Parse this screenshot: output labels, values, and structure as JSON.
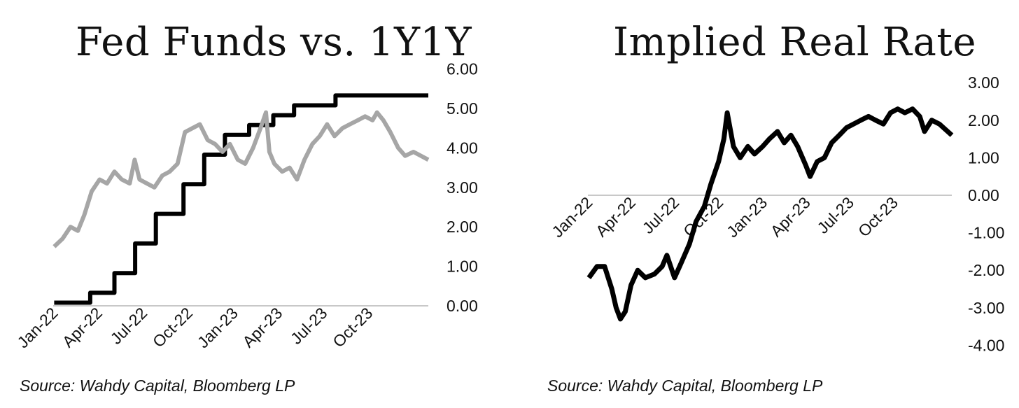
{
  "chart_data": [
    {
      "type": "line",
      "title": "Fed Funds vs. 1Y1Y",
      "source": "Source: Wahdy Capital, Bloomberg LP",
      "x_tick_labels": [
        "Jan-22",
        "Apr-22",
        "Jul-22",
        "Oct-22",
        "Jan-23",
        "Apr-23",
        "Jul-23",
        "Oct-23"
      ],
      "y_tick_labels": [
        "0.00",
        "1.00",
        "2.00",
        "3.00",
        "4.00",
        "5.00",
        "6.00"
      ],
      "ylim": [
        0,
        6
      ],
      "xlim": [
        "2022-01-01",
        "2024-01-31"
      ],
      "y_axis_side": "right",
      "grid": false,
      "legend": "none",
      "series": [
        {
          "color": "#000000",
          "line": "step",
          "points": [
            [
              "2022-01-03",
              0.08
            ],
            [
              "2022-03-17",
              0.33
            ],
            [
              "2022-05-05",
              0.83
            ],
            [
              "2022-06-16",
              1.58
            ],
            [
              "2022-07-28",
              2.33
            ],
            [
              "2022-09-22",
              3.08
            ],
            [
              "2022-11-03",
              3.83
            ],
            [
              "2022-12-15",
              4.33
            ],
            [
              "2023-02-02",
              4.58
            ],
            [
              "2023-03-23",
              4.83
            ],
            [
              "2023-05-04",
              5.08
            ],
            [
              "2023-07-27",
              5.33
            ],
            [
              "2024-01-31",
              5.33
            ]
          ]
        },
        {
          "color": "#a6a6a6",
          "line": "line",
          "points": [
            [
              "2022-01-03",
              1.5
            ],
            [
              "2022-01-20",
              1.7
            ],
            [
              "2022-02-05",
              2.0
            ],
            [
              "2022-02-20",
              1.9
            ],
            [
              "2022-03-05",
              2.3
            ],
            [
              "2022-03-20",
              2.9
            ],
            [
              "2022-04-05",
              3.2
            ],
            [
              "2022-04-20",
              3.1
            ],
            [
              "2022-05-05",
              3.4
            ],
            [
              "2022-05-20",
              3.2
            ],
            [
              "2022-06-05",
              3.1
            ],
            [
              "2022-06-15",
              3.7
            ],
            [
              "2022-06-25",
              3.2
            ],
            [
              "2022-07-10",
              3.1
            ],
            [
              "2022-07-25",
              3.0
            ],
            [
              "2022-08-10",
              3.3
            ],
            [
              "2022-08-25",
              3.4
            ],
            [
              "2022-09-10",
              3.6
            ],
            [
              "2022-09-25",
              4.4
            ],
            [
              "2022-10-10",
              4.5
            ],
            [
              "2022-10-25",
              4.6
            ],
            [
              "2022-11-10",
              4.2
            ],
            [
              "2022-11-25",
              4.1
            ],
            [
              "2022-12-10",
              3.9
            ],
            [
              "2022-12-25",
              4.1
            ],
            [
              "2023-01-10",
              3.7
            ],
            [
              "2023-01-25",
              3.6
            ],
            [
              "2023-02-10",
              4.0
            ],
            [
              "2023-02-25",
              4.5
            ],
            [
              "2023-03-08",
              4.9
            ],
            [
              "2023-03-15",
              3.9
            ],
            [
              "2023-03-25",
              3.6
            ],
            [
              "2023-04-10",
              3.4
            ],
            [
              "2023-04-25",
              3.5
            ],
            [
              "2023-05-10",
              3.2
            ],
            [
              "2023-05-25",
              3.7
            ],
            [
              "2023-06-10",
              4.1
            ],
            [
              "2023-06-25",
              4.3
            ],
            [
              "2023-07-10",
              4.6
            ],
            [
              "2023-07-25",
              4.3
            ],
            [
              "2023-08-10",
              4.5
            ],
            [
              "2023-08-25",
              4.6
            ],
            [
              "2023-09-10",
              4.7
            ],
            [
              "2023-09-25",
              4.8
            ],
            [
              "2023-10-10",
              4.7
            ],
            [
              "2023-10-19",
              4.9
            ],
            [
              "2023-11-01",
              4.7
            ],
            [
              "2023-11-15",
              4.4
            ],
            [
              "2023-12-01",
              4.0
            ],
            [
              "2023-12-15",
              3.8
            ],
            [
              "2024-01-01",
              3.9
            ],
            [
              "2024-01-31",
              3.7
            ]
          ]
        }
      ]
    },
    {
      "type": "line",
      "title": "Implied Real Rate",
      "source": "Source: Wahdy Capital, Bloomberg LP",
      "x_tick_labels": [
        "Jan-22",
        "Apr-22",
        "Jul-22",
        "Oct-22",
        "Jan-23",
        "Apr-23",
        "Jul-23",
        "Oct-23"
      ],
      "y_tick_labels": [
        "3.00",
        "2.00",
        "1.00",
        "0.00",
        "-1.00",
        "-2.00",
        "-3.00",
        "-4.00"
      ],
      "ylim": [
        -4,
        3
      ],
      "xlim": [
        "2022-01-01",
        "2024-01-31"
      ],
      "y_axis_side": "right",
      "grid": false,
      "legend": "none",
      "series": [
        {
          "color": "#000000",
          "line": "line",
          "points": [
            [
              "2022-01-03",
              -2.2
            ],
            [
              "2022-01-20",
              -1.9
            ],
            [
              "2022-02-05",
              -1.9
            ],
            [
              "2022-02-20",
              -2.5
            ],
            [
              "2022-03-01",
              -3.0
            ],
            [
              "2022-03-10",
              -3.3
            ],
            [
              "2022-03-20",
              -3.1
            ],
            [
              "2022-04-01",
              -2.4
            ],
            [
              "2022-04-15",
              -2.0
            ],
            [
              "2022-05-01",
              -2.2
            ],
            [
              "2022-05-20",
              -2.1
            ],
            [
              "2022-06-05",
              -1.9
            ],
            [
              "2022-06-15",
              -1.6
            ],
            [
              "2022-07-01",
              -2.2
            ],
            [
              "2022-07-15",
              -1.8
            ],
            [
              "2022-08-01",
              -1.3
            ],
            [
              "2022-08-15",
              -0.7
            ],
            [
              "2022-09-01",
              -0.3
            ],
            [
              "2022-09-15",
              0.3
            ],
            [
              "2022-10-01",
              0.9
            ],
            [
              "2022-10-12",
              1.5
            ],
            [
              "2022-10-19",
              2.2
            ],
            [
              "2022-11-01",
              1.3
            ],
            [
              "2022-11-15",
              1.0
            ],
            [
              "2022-12-01",
              1.3
            ],
            [
              "2022-12-15",
              1.1
            ],
            [
              "2023-01-01",
              1.3
            ],
            [
              "2023-01-15",
              1.5
            ],
            [
              "2023-02-01",
              1.7
            ],
            [
              "2023-02-15",
              1.4
            ],
            [
              "2023-03-01",
              1.6
            ],
            [
              "2023-03-15",
              1.3
            ],
            [
              "2023-04-01",
              0.8
            ],
            [
              "2023-04-10",
              0.5
            ],
            [
              "2023-04-25",
              0.9
            ],
            [
              "2023-05-10",
              1.0
            ],
            [
              "2023-05-25",
              1.4
            ],
            [
              "2023-06-10",
              1.6
            ],
            [
              "2023-06-25",
              1.8
            ],
            [
              "2023-07-10",
              1.9
            ],
            [
              "2023-07-25",
              2.0
            ],
            [
              "2023-08-10",
              2.1
            ],
            [
              "2023-08-25",
              2.0
            ],
            [
              "2023-09-10",
              1.9
            ],
            [
              "2023-09-25",
              2.2
            ],
            [
              "2023-10-10",
              2.3
            ],
            [
              "2023-10-25",
              2.2
            ],
            [
              "2023-11-10",
              2.3
            ],
            [
              "2023-11-25",
              2.1
            ],
            [
              "2023-12-05",
              1.7
            ],
            [
              "2023-12-20",
              2.0
            ],
            [
              "2024-01-05",
              1.9
            ],
            [
              "2024-01-31",
              1.6
            ]
          ]
        }
      ]
    }
  ]
}
